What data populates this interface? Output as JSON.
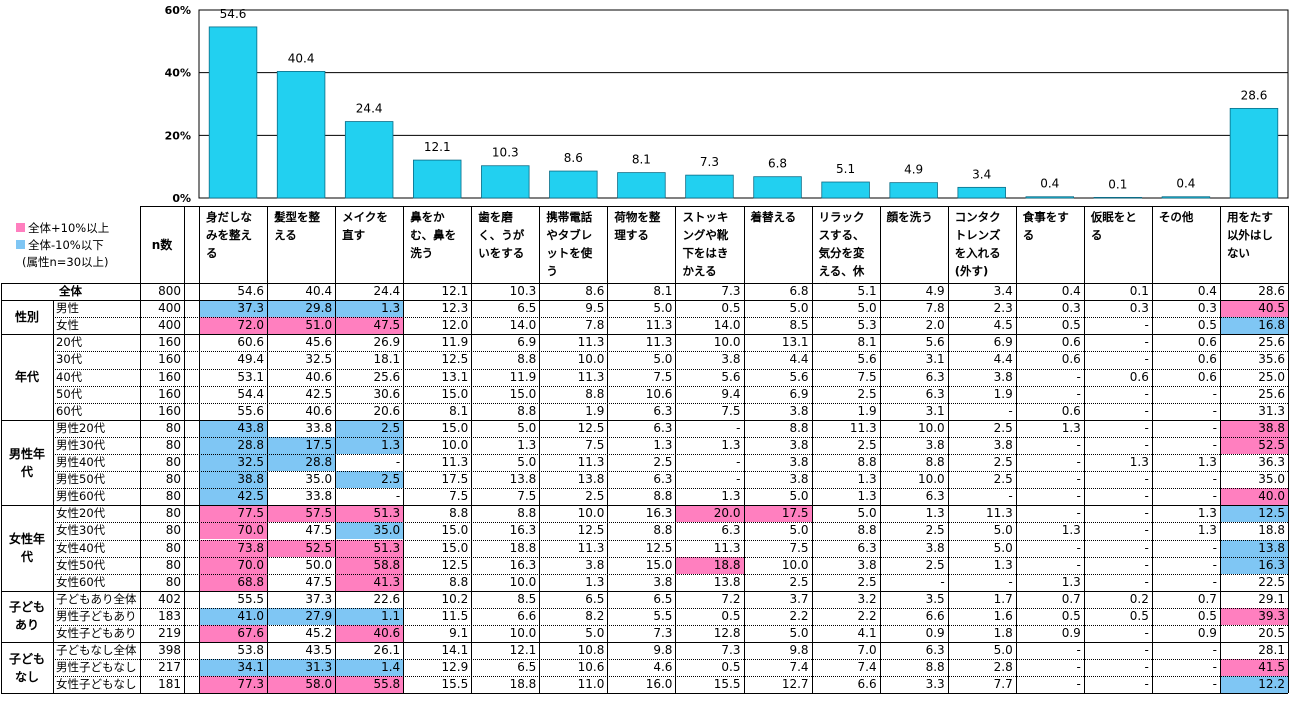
{
  "legend": {
    "hi_label": "全体+10%以上",
    "lo_label": "全体-10%以下",
    "note": "(属性n=30以上)",
    "hi_color": "#ff7fbf",
    "lo_color": "#7fc6f4"
  },
  "n_header": "n数",
  "chart_data": {
    "type": "bar",
    "categories": [
      "身だしなみを整える",
      "髪型を整える",
      "メイクを直す",
      "鼻をかむ、鼻を洗う",
      "歯を磨く、うがいをする",
      "携帯電話やタブレットを使う",
      "荷物を整理する",
      "ストッキングや靴下をはきかえる",
      "着替える",
      "リラックスする、気分を変える、休憩する",
      "顔を洗う",
      "コンタクトレンズを入れる(外す)",
      "食事をする",
      "仮眠をとる",
      "その他",
      "用をたす以外はしない"
    ],
    "values": [
      54.6,
      40.4,
      24.4,
      12.1,
      10.3,
      8.6,
      8.1,
      7.3,
      6.8,
      5.1,
      4.9,
      3.4,
      0.4,
      0.1,
      0.4,
      28.6
    ],
    "value_labels": [
      "54.6",
      "40.4",
      "24.4",
      "12.1",
      "10.3",
      "8.6",
      "8.1",
      "7.3",
      "6.8",
      "5.1",
      "4.9",
      "3.4",
      "0.4",
      "0.1",
      "0.4",
      "28.6"
    ],
    "ylim": [
      0,
      60
    ],
    "yticks": [
      "0%",
      "20%",
      "40%",
      "60%"
    ],
    "bar_color": "#22d0f0",
    "grid": true
  },
  "groups": [
    {
      "label": "",
      "rows": [
        0
      ]
    },
    {
      "label": "性別",
      "rows": [
        1,
        2
      ]
    },
    {
      "label": "年代",
      "rows": [
        3,
        4,
        5,
        6,
        7
      ]
    },
    {
      "label": "男性年代",
      "rows": [
        8,
        9,
        10,
        11,
        12
      ]
    },
    {
      "label": "女性年代",
      "rows": [
        13,
        14,
        15,
        16,
        17
      ]
    },
    {
      "label": "子どもあり",
      "rows": [
        18,
        19,
        20
      ]
    },
    {
      "label": "子どもなし",
      "rows": [
        21,
        22,
        23
      ]
    }
  ],
  "rows": [
    {
      "label": "全体",
      "n": "800",
      "v": [
        "54.6",
        "40.4",
        "24.4",
        "12.1",
        "10.3",
        "8.6",
        "8.1",
        "7.3",
        "6.8",
        "5.1",
        "4.9",
        "3.4",
        "0.4",
        "0.1",
        "0.4",
        "28.6"
      ],
      "hl": "................"
    },
    {
      "label": "男性",
      "n": "400",
      "v": [
        "37.3",
        "29.8",
        "1.3",
        "12.3",
        "6.5",
        "9.5",
        "5.0",
        "0.5",
        "5.0",
        "5.0",
        "7.8",
        "2.3",
        "0.3",
        "0.3",
        "0.3",
        "40.5"
      ],
      "hl": "LLL............H"
    },
    {
      "label": "女性",
      "n": "400",
      "v": [
        "72.0",
        "51.0",
        "47.5",
        "12.0",
        "14.0",
        "7.8",
        "11.3",
        "14.0",
        "8.5",
        "5.3",
        "2.0",
        "4.5",
        "0.5",
        "-",
        "0.5",
        "16.8"
      ],
      "hl": "HHH............L"
    },
    {
      "label": "20代",
      "n": "160",
      "v": [
        "60.6",
        "45.6",
        "26.9",
        "11.9",
        "6.9",
        "11.3",
        "11.3",
        "10.0",
        "13.1",
        "8.1",
        "5.6",
        "6.9",
        "0.6",
        "-",
        "0.6",
        "25.6"
      ],
      "hl": "................"
    },
    {
      "label": "30代",
      "n": "160",
      "v": [
        "49.4",
        "32.5",
        "18.1",
        "12.5",
        "8.8",
        "10.0",
        "5.0",
        "3.8",
        "4.4",
        "5.6",
        "3.1",
        "4.4",
        "0.6",
        "-",
        "0.6",
        "35.6"
      ],
      "hl": "................"
    },
    {
      "label": "40代",
      "n": "160",
      "v": [
        "53.1",
        "40.6",
        "25.6",
        "13.1",
        "11.9",
        "11.3",
        "7.5",
        "5.6",
        "5.6",
        "7.5",
        "6.3",
        "3.8",
        "-",
        "0.6",
        "0.6",
        "25.0"
      ],
      "hl": "................"
    },
    {
      "label": "50代",
      "n": "160",
      "v": [
        "54.4",
        "42.5",
        "30.6",
        "15.0",
        "15.0",
        "8.8",
        "10.6",
        "9.4",
        "6.9",
        "2.5",
        "6.3",
        "1.9",
        "-",
        "-",
        "-",
        "25.6"
      ],
      "hl": "................"
    },
    {
      "label": "60代",
      "n": "160",
      "v": [
        "55.6",
        "40.6",
        "20.6",
        "8.1",
        "8.8",
        "1.9",
        "6.3",
        "7.5",
        "3.8",
        "1.9",
        "3.1",
        "-",
        "0.6",
        "-",
        "-",
        "31.3"
      ],
      "hl": "................"
    },
    {
      "label": "男性20代",
      "n": "80",
      "v": [
        "43.8",
        "33.8",
        "2.5",
        "15.0",
        "5.0",
        "12.5",
        "6.3",
        "-",
        "8.8",
        "11.3",
        "10.0",
        "2.5",
        "1.3",
        "-",
        "-",
        "38.8"
      ],
      "hl": "L.L............H"
    },
    {
      "label": "男性30代",
      "n": "80",
      "v": [
        "28.8",
        "17.5",
        "1.3",
        "10.0",
        "1.3",
        "7.5",
        "1.3",
        "1.3",
        "3.8",
        "2.5",
        "3.8",
        "3.8",
        "-",
        "-",
        "-",
        "52.5"
      ],
      "hl": "LLL............H"
    },
    {
      "label": "男性40代",
      "n": "80",
      "v": [
        "32.5",
        "28.8",
        "-",
        "11.3",
        "5.0",
        "11.3",
        "2.5",
        "-",
        "3.8",
        "8.8",
        "8.8",
        "2.5",
        "-",
        "1.3",
        "1.3",
        "36.3"
      ],
      "hl": "LL.............."
    },
    {
      "label": "男性50代",
      "n": "80",
      "v": [
        "38.8",
        "35.0",
        "2.5",
        "17.5",
        "13.8",
        "13.8",
        "6.3",
        "-",
        "3.8",
        "1.3",
        "10.0",
        "2.5",
        "-",
        "-",
        "-",
        "35.0"
      ],
      "hl": "L.L............."
    },
    {
      "label": "男性60代",
      "n": "80",
      "v": [
        "42.5",
        "33.8",
        "-",
        "7.5",
        "7.5",
        "2.5",
        "8.8",
        "1.3",
        "5.0",
        "1.3",
        "6.3",
        "-",
        "-",
        "-",
        "-",
        "40.0"
      ],
      "hl": "L..............H"
    },
    {
      "label": "女性20代",
      "n": "80",
      "v": [
        "77.5",
        "57.5",
        "51.3",
        "8.8",
        "8.8",
        "10.0",
        "16.3",
        "20.0",
        "17.5",
        "5.0",
        "1.3",
        "11.3",
        "-",
        "-",
        "1.3",
        "12.5"
      ],
      "hl": "HHH....HH......L"
    },
    {
      "label": "女性30代",
      "n": "80",
      "v": [
        "70.0",
        "47.5",
        "35.0",
        "15.0",
        "16.3",
        "12.5",
        "8.8",
        "6.3",
        "5.0",
        "8.8",
        "2.5",
        "5.0",
        "1.3",
        "-",
        "1.3",
        "18.8"
      ],
      "hl": "H.L............."
    },
    {
      "label": "女性40代",
      "n": "80",
      "v": [
        "73.8",
        "52.5",
        "51.3",
        "15.0",
        "18.8",
        "11.3",
        "12.5",
        "11.3",
        "7.5",
        "6.3",
        "3.8",
        "5.0",
        "-",
        "-",
        "-",
        "13.8"
      ],
      "hl": "HHH............L"
    },
    {
      "label": "女性50代",
      "n": "80",
      "v": [
        "70.0",
        "50.0",
        "58.8",
        "12.5",
        "16.3",
        "3.8",
        "15.0",
        "18.8",
        "10.0",
        "3.8",
        "2.5",
        "1.3",
        "-",
        "-",
        "-",
        "16.3"
      ],
      "hl": "H.H....H.......L"
    },
    {
      "label": "女性60代",
      "n": "80",
      "v": [
        "68.8",
        "47.5",
        "41.3",
        "8.8",
        "10.0",
        "1.3",
        "3.8",
        "13.8",
        "2.5",
        "2.5",
        "-",
        "-",
        "1.3",
        "-",
        "-",
        "22.5"
      ],
      "hl": "H.H............."
    },
    {
      "label": "子どもあり全体",
      "n": "402",
      "v": [
        "55.5",
        "37.3",
        "22.6",
        "10.2",
        "8.5",
        "6.5",
        "6.5",
        "7.2",
        "3.7",
        "3.2",
        "3.5",
        "1.7",
        "0.7",
        "0.2",
        "0.7",
        "29.1"
      ],
      "hl": "................"
    },
    {
      "label": "男性子どもあり",
      "n": "183",
      "v": [
        "41.0",
        "27.9",
        "1.1",
        "11.5",
        "6.6",
        "8.2",
        "5.5",
        "0.5",
        "2.2",
        "2.2",
        "6.6",
        "1.6",
        "0.5",
        "0.5",
        "0.5",
        "39.3"
      ],
      "hl": "LLL............H"
    },
    {
      "label": "女性子どもあり",
      "n": "219",
      "v": [
        "67.6",
        "45.2",
        "40.6",
        "9.1",
        "10.0",
        "5.0",
        "7.3",
        "12.8",
        "5.0",
        "4.1",
        "0.9",
        "1.8",
        "0.9",
        "-",
        "0.9",
        "20.5"
      ],
      "hl": "H.H............."
    },
    {
      "label": "子どもなし全体",
      "n": "398",
      "v": [
        "53.8",
        "43.5",
        "26.1",
        "14.1",
        "12.1",
        "10.8",
        "9.8",
        "7.3",
        "9.8",
        "7.0",
        "6.3",
        "5.0",
        "-",
        "-",
        "-",
        "28.1"
      ],
      "hl": "................"
    },
    {
      "label": "男性子どもなし",
      "n": "217",
      "v": [
        "34.1",
        "31.3",
        "1.4",
        "12.9",
        "6.5",
        "10.6",
        "4.6",
        "0.5",
        "7.4",
        "7.4",
        "8.8",
        "2.8",
        "-",
        "-",
        "-",
        "41.5"
      ],
      "hl": "LLL............H"
    },
    {
      "label": "女性子どもなし",
      "n": "181",
      "v": [
        "77.3",
        "58.0",
        "55.8",
        "15.5",
        "18.8",
        "11.0",
        "16.0",
        "15.5",
        "12.7",
        "6.6",
        "3.3",
        "7.7",
        "-",
        "-",
        "-",
        "12.2"
      ],
      "hl": "HHH............L"
    }
  ]
}
